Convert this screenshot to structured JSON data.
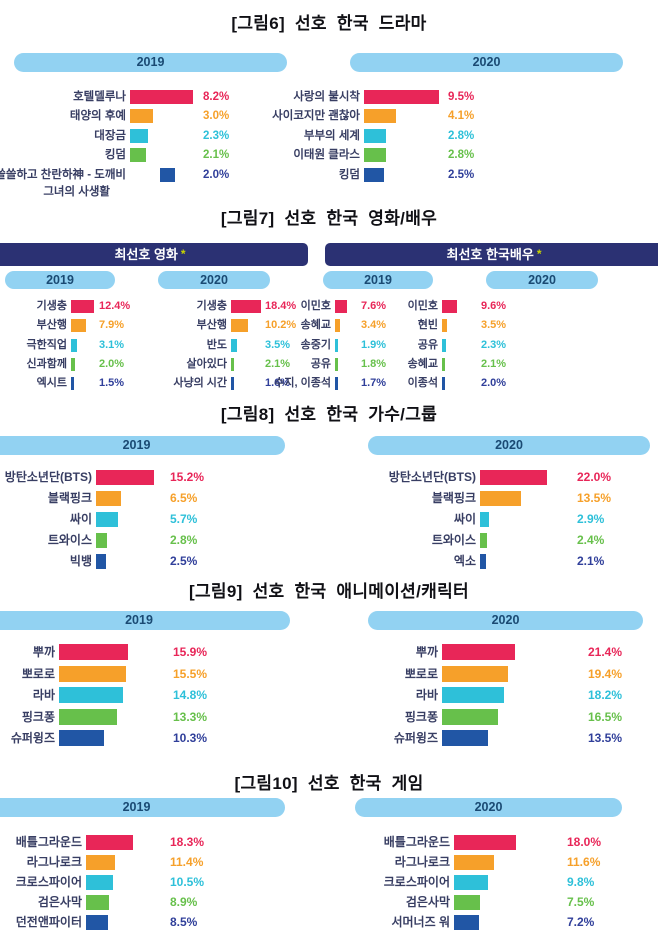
{
  "colors": {
    "bar_colors": [
      "#E82658",
      "#F6A02A",
      "#2EC0D9",
      "#67C04B",
      "#2156A5"
    ],
    "value_colors": [
      "#E82658",
      "#F6A02A",
      "#2EC0D9",
      "#67C04B",
      "#303F9A"
    ],
    "pill_bg": "#92D2F2",
    "pill_text": "#1A4A73",
    "group_header_bg": "#2B3173",
    "group_header_text": "#FFFFFF",
    "asterisk": "#C8D400",
    "label_text": "#383E63",
    "title_text": "#101015"
  },
  "chart_data": [
    {
      "id": "fig6",
      "type": "bar",
      "orientation": "horizontal",
      "title": "[그림6] 선호 한국 드라마",
      "panels": [
        {
          "year": "2019",
          "items": [
            {
              "label": "호텔델루나",
              "value": 8.2,
              "text": "8.2%"
            },
            {
              "label": "태양의 후예",
              "value": 3.0,
              "text": "3.0%"
            },
            {
              "label": "대장금",
              "value": 2.3,
              "text": "2.3%"
            },
            {
              "label": "킹덤",
              "value": 2.1,
              "text": "2.1%"
            },
            {
              "label": "쓸쓸하고 찬란하神 - 도깨비",
              "label2": "그녀의 사생활",
              "value": 2.0,
              "text": "2.0%"
            }
          ]
        },
        {
          "year": "2020",
          "items": [
            {
              "label": "사랑의 불시착",
              "value": 9.5,
              "text": "9.5%"
            },
            {
              "label": "사이코지만 괜찮아",
              "value": 4.1,
              "text": "4.1%"
            },
            {
              "label": "부부의 세계",
              "value": 2.8,
              "text": "2.8%"
            },
            {
              "label": "이태원 클라스",
              "value": 2.8,
              "text": "2.8%"
            },
            {
              "label": "킹덤",
              "value": 2.5,
              "text": "2.5%"
            }
          ]
        }
      ]
    },
    {
      "id": "fig7",
      "type": "bar",
      "orientation": "horizontal",
      "title": "[그림7] 선호 한국 영화/배우",
      "groups": [
        {
          "header": "최선호 영화",
          "marker": "*",
          "panels": [
            {
              "year": "2019",
              "items": [
                {
                  "label": "기생충",
                  "value": 12.4,
                  "text": "12.4%"
                },
                {
                  "label": "부산행",
                  "value": 7.9,
                  "text": "7.9%"
                },
                {
                  "label": "극한직업",
                  "value": 3.1,
                  "text": "3.1%"
                },
                {
                  "label": "신과함께",
                  "value": 2.0,
                  "text": "2.0%"
                },
                {
                  "label": "엑시트",
                  "value": 1.5,
                  "text": "1.5%"
                }
              ]
            },
            {
              "year": "2020",
              "items": [
                {
                  "label": "기생충",
                  "value": 18.4,
                  "text": "18.4%"
                },
                {
                  "label": "부산행",
                  "value": 10.2,
                  "text": "10.2%"
                },
                {
                  "label": "반도",
                  "value": 3.5,
                  "text": "3.5%"
                },
                {
                  "label": "살아있다",
                  "value": 2.1,
                  "text": "2.1%"
                },
                {
                  "label": "사냥의 시간",
                  "value": 1.6,
                  "text": "1.6%"
                }
              ]
            }
          ]
        },
        {
          "header": "최선호 한국배우",
          "marker": "*",
          "panels": [
            {
              "year": "2019",
              "items": [
                {
                  "label": "이민호",
                  "value": 7.6,
                  "text": "7.6%"
                },
                {
                  "label": "송혜교",
                  "value": 3.4,
                  "text": "3.4%"
                },
                {
                  "label": "송중기",
                  "value": 1.9,
                  "text": "1.9%"
                },
                {
                  "label": "공유",
                  "value": 1.8,
                  "text": "1.8%"
                },
                {
                  "label": "수지, 이종석",
                  "value": 1.7,
                  "text": "1.7%"
                }
              ]
            },
            {
              "year": "2020",
              "items": [
                {
                  "label": "이민호",
                  "value": 9.6,
                  "text": "9.6%"
                },
                {
                  "label": "현빈",
                  "value": 3.5,
                  "text": "3.5%"
                },
                {
                  "label": "공유",
                  "value": 2.3,
                  "text": "2.3%"
                },
                {
                  "label": "송혜교",
                  "value": 2.1,
                  "text": "2.1%"
                },
                {
                  "label": "이종석",
                  "value": 2.0,
                  "text": "2.0%"
                }
              ]
            }
          ]
        }
      ]
    },
    {
      "id": "fig8",
      "type": "bar",
      "orientation": "horizontal",
      "title": "[그림8] 선호 한국 가수/그룹",
      "panels": [
        {
          "year": "2019",
          "items": [
            {
              "label": "방탄소년단(BTS)",
              "value": 15.2,
              "text": "15.2%"
            },
            {
              "label": "블랙핑크",
              "value": 6.5,
              "text": "6.5%"
            },
            {
              "label": "싸이",
              "value": 5.7,
              "text": "5.7%"
            },
            {
              "label": "트와이스",
              "value": 2.8,
              "text": "2.8%"
            },
            {
              "label": "빅뱅",
              "value": 2.5,
              "text": "2.5%"
            }
          ]
        },
        {
          "year": "2020",
          "items": [
            {
              "label": "방탄소년단(BTS)",
              "value": 22.0,
              "text": "22.0%"
            },
            {
              "label": "블랙핑크",
              "value": 13.5,
              "text": "13.5%"
            },
            {
              "label": "싸이",
              "value": 2.9,
              "text": "2.9%"
            },
            {
              "label": "트와이스",
              "value": 2.4,
              "text": "2.4%"
            },
            {
              "label": "엑소",
              "value": 2.1,
              "text": "2.1%"
            }
          ]
        }
      ]
    },
    {
      "id": "fig9",
      "type": "bar",
      "orientation": "horizontal",
      "title": "[그림9] 선호 한국 애니메이션/캐릭터",
      "panels": [
        {
          "year": "2019",
          "items": [
            {
              "label": "뿌까",
              "value": 15.9,
              "text": "15.9%"
            },
            {
              "label": "뽀로로",
              "value": 15.5,
              "text": "15.5%"
            },
            {
              "label": "라바",
              "value": 14.8,
              "text": "14.8%"
            },
            {
              "label": "핑크퐁",
              "value": 13.3,
              "text": "13.3%"
            },
            {
              "label": "슈퍼윙즈",
              "value": 10.3,
              "text": "10.3%"
            }
          ]
        },
        {
          "year": "2020",
          "items": [
            {
              "label": "뿌까",
              "value": 21.4,
              "text": "21.4%"
            },
            {
              "label": "뽀로로",
              "value": 19.4,
              "text": "19.4%"
            },
            {
              "label": "라바",
              "value": 18.2,
              "text": "18.2%"
            },
            {
              "label": "핑크퐁",
              "value": 16.5,
              "text": "16.5%"
            },
            {
              "label": "슈퍼윙즈",
              "value": 13.5,
              "text": "13.5%"
            }
          ]
        }
      ]
    },
    {
      "id": "fig10",
      "type": "bar",
      "orientation": "horizontal",
      "title": "[그림10] 선호 한국 게임",
      "panels": [
        {
          "year": "2019",
          "items": [
            {
              "label": "배틀그라운드",
              "value": 18.3,
              "text": "18.3%"
            },
            {
              "label": "라그나로크",
              "value": 11.4,
              "text": "11.4%"
            },
            {
              "label": "크로스파이어",
              "value": 10.5,
              "text": "10.5%"
            },
            {
              "label": "검은사막",
              "value": 8.9,
              "text": "8.9%"
            },
            {
              "label": "던전앤파이터",
              "value": 8.5,
              "text": "8.5%"
            }
          ]
        },
        {
          "year": "2020",
          "items": [
            {
              "label": "배틀그라운드",
              "value": 18.0,
              "text": "18.0%"
            },
            {
              "label": "라그나로크",
              "value": 11.6,
              "text": "11.6%"
            },
            {
              "label": "크로스파이어",
              "value": 9.8,
              "text": "9.8%"
            },
            {
              "label": "검은사막",
              "value": 7.5,
              "text": "7.5%"
            },
            {
              "label": "서머너즈 워",
              "value": 7.2,
              "text": "7.2%"
            }
          ]
        }
      ]
    }
  ]
}
